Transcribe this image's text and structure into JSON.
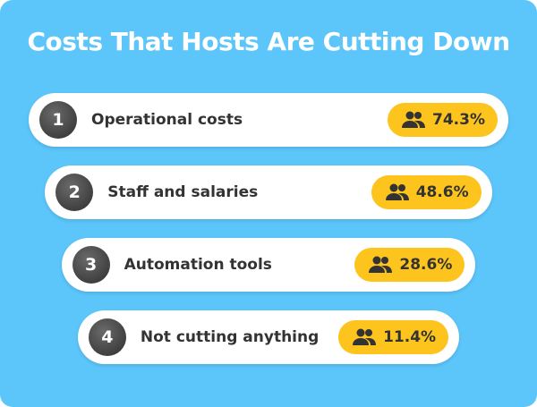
{
  "title": "Costs That Hosts Are Cutting Down",
  "items": [
    {
      "rank": "1",
      "label": "Operational costs",
      "value": "74.3%"
    },
    {
      "rank": "2",
      "label": "Staff and salaries",
      "value": "48.6%"
    },
    {
      "rank": "3",
      "label": "Automation tools",
      "value": "28.6%"
    },
    {
      "rank": "4",
      "label": "Not cutting anything",
      "value": "11.4%"
    }
  ]
}
